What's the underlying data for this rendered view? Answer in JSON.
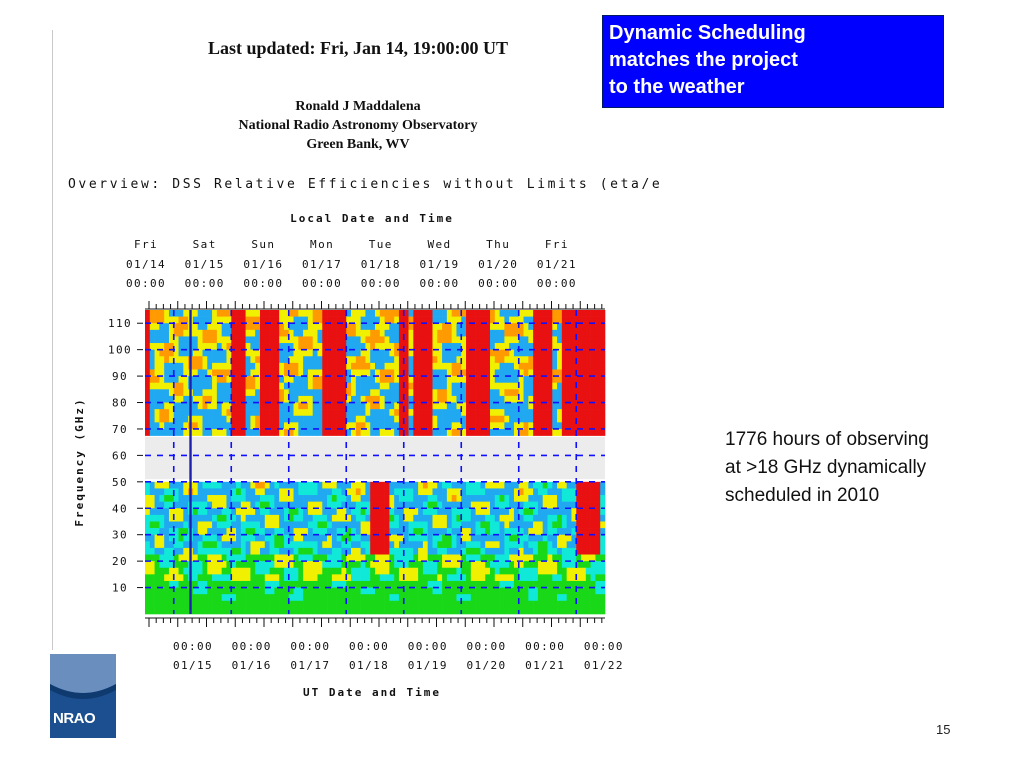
{
  "header": {
    "last_updated": "Last updated: Fri, Jan 14, 19:00:00 UT",
    "author": "Ronald J Maddalena",
    "organization": "National Radio Astronomy Observatory",
    "location": "Green Bank, WV"
  },
  "callout": {
    "lines": [
      "Dynamic Scheduling",
      "matches the project",
      "to the weather"
    ],
    "color": "#0000ff"
  },
  "note": {
    "lines": [
      "1776 hours of observing",
      "at >18 GHz dynamically",
      "scheduled in 2010"
    ]
  },
  "footer": {
    "logo_text": "NRAO",
    "page_number": "15"
  },
  "chart_data": {
    "type": "heatmap",
    "title": "Overview: DSS Relative Efficiencies without Limits (eta/eta_mi",
    "top_axis": {
      "label": "Local Date and Time",
      "days": [
        "Fri",
        "Sat",
        "Sun",
        "Mon",
        "Tue",
        "Wed",
        "Thu",
        "Fri"
      ],
      "dates": [
        "01/14",
        "01/15",
        "01/16",
        "01/17",
        "01/18",
        "01/19",
        "01/20",
        "01/21"
      ],
      "times": [
        "00:00",
        "00:00",
        "00:00",
        "00:00",
        "00:00",
        "00:00",
        "00:00",
        "00:00"
      ]
    },
    "bottom_axis": {
      "label": "UT Date and Time",
      "times": [
        "00:00",
        "00:00",
        "00:00",
        "00:00",
        "00:00",
        "00:00",
        "00:00",
        "00:00"
      ],
      "dates": [
        "01/15",
        "01/16",
        "01/17",
        "01/18",
        "01/19",
        "01/20",
        "01/21",
        "01/22"
      ]
    },
    "y_axis": {
      "label": "Frequency (GHz)",
      "ticks": [
        "10",
        "20",
        "30",
        "40",
        "50",
        "60",
        "70",
        "80",
        "90",
        "100",
        "110"
      ],
      "range": [
        0,
        115
      ]
    },
    "excluded_band_ghz": [
      51,
      67
    ],
    "current_time_marker_hours": 19,
    "colormap": [
      "#18d818",
      "#10e8d8",
      "#20a8f0",
      "#f0f000",
      "#ff9a00",
      "#e81010"
    ],
    "colors": {
      "gridline": "#1010ff",
      "excluded_band": "#ececec",
      "marker": "#2020b0"
    }
  }
}
